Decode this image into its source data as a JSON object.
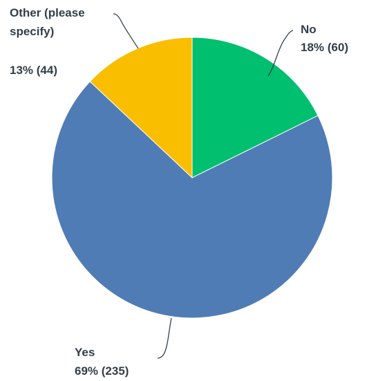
{
  "chart_data": {
    "type": "pie",
    "start_angle_deg": 0,
    "direction": "clockwise",
    "slices": [
      {
        "name": "No",
        "percent_label": "18% (60)",
        "percent": 18,
        "count": 60,
        "color": "#00bf6f"
      },
      {
        "name": "Yes",
        "percent_label": "69% (235)",
        "percent": 69,
        "count": 235,
        "color": "#507cb6"
      },
      {
        "name": "Other (please specify)",
        "name_lines": [
          "Other (please",
          "specify)"
        ],
        "percent_label": "13% (44)",
        "percent": 13,
        "count": 44,
        "color": "#f9be00"
      }
    ]
  }
}
